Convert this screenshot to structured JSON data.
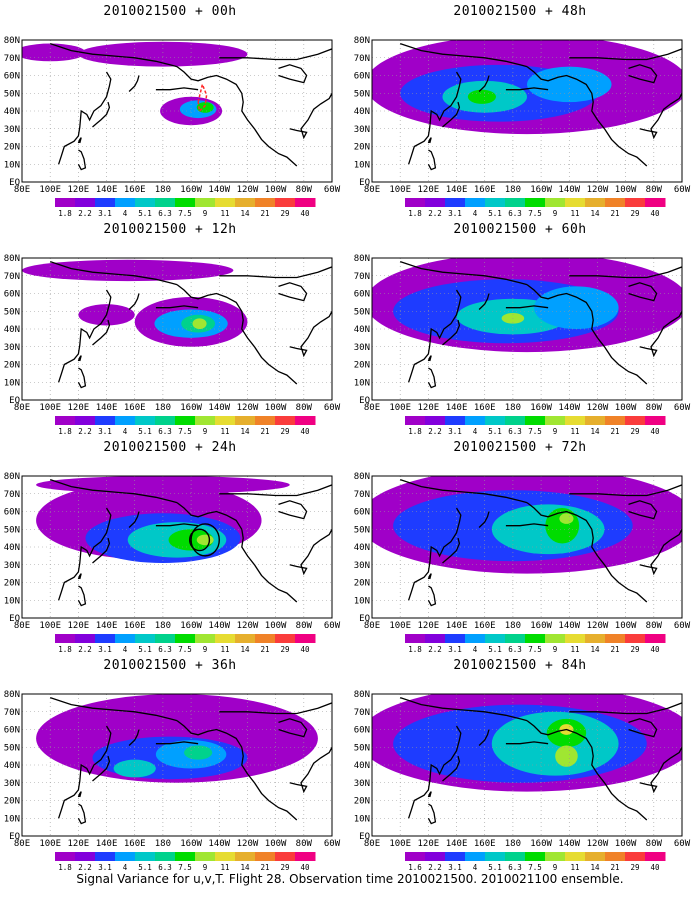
{
  "figure": {
    "caption": "Signal Variance for u,v,T. Flight 28. Observation time 2010021500. 2010021100 ensemble."
  },
  "chart_data": [
    {
      "type": "heatmap",
      "title": "2010021500 + 00h",
      "lead_hours": 0,
      "map": {
        "lon_range": [
          80,
          300
        ],
        "lat_range": [
          0,
          80
        ]
      },
      "x_tick_labels": [
        "80E",
        "100E",
        "120E",
        "140E",
        "160E",
        "180",
        "160W",
        "140W",
        "120W",
        "100W",
        "80W",
        "60W"
      ],
      "y_tick_labels": [
        "EQ",
        "10N",
        "20N",
        "30N",
        "40N",
        "50N",
        "60N",
        "70N",
        "80N"
      ],
      "color_scale": {
        "levels": [
          "1.8",
          "2.2",
          "3.1",
          "4",
          "5.1",
          "6.3",
          "7.5",
          "9",
          "11",
          "14",
          "21",
          "29",
          "40"
        ],
        "colors": [
          "#a000c8",
          "#8200dc",
          "#1e3cff",
          "#00a0ff",
          "#00c8c8",
          "#00d28c",
          "#00dc00",
          "#a0e632",
          "#e6dc32",
          "#e6af2d",
          "#f08228",
          "#fa3c3c",
          "#f00082"
        ]
      },
      "shaded_regions": [
        {
          "lon": 200,
          "lat": 40,
          "rx": 22,
          "ry": 8,
          "level": 0
        },
        {
          "lon": 205,
          "lat": 41,
          "rx": 13,
          "ry": 5,
          "level": 3
        },
        {
          "lon": 210,
          "lat": 42,
          "rx": 6,
          "ry": 3,
          "level": 6
        },
        {
          "lon": 180,
          "lat": 72,
          "rx": 60,
          "ry": 7,
          "level": 0
        },
        {
          "lon": 100,
          "lat": 73,
          "rx": 25,
          "ry": 5,
          "level": 0
        }
      ],
      "observation_track": true,
      "has_circles": false
    },
    {
      "type": "heatmap",
      "title": "2010021500 + 12h",
      "lead_hours": 12,
      "map": {
        "lon_range": [
          80,
          300
        ],
        "lat_range": [
          0,
          80
        ]
      },
      "x_tick_labels": [
        "80E",
        "100E",
        "120E",
        "140E",
        "160E",
        "180",
        "160W",
        "140W",
        "120W",
        "100W",
        "80W",
        "60W"
      ],
      "y_tick_labels": [
        "EQ",
        "10N",
        "20N",
        "30N",
        "40N",
        "50N",
        "60N",
        "70N",
        "80N"
      ],
      "color_scale": {
        "levels": [
          "1.8",
          "2.2",
          "3.1",
          "4",
          "5.1",
          "6.3",
          "7.5",
          "9",
          "11",
          "14",
          "21",
          "29",
          "40"
        ],
        "colors": [
          "#a000c8",
          "#8200dc",
          "#1e3cff",
          "#00a0ff",
          "#00c8c8",
          "#00d28c",
          "#00dc00",
          "#a0e632",
          "#e6dc32",
          "#e6af2d",
          "#f08228",
          "#fa3c3c",
          "#f00082"
        ]
      },
      "shaded_regions": [
        {
          "lon": 155,
          "lat": 73,
          "rx": 75,
          "ry": 6,
          "level": 0
        },
        {
          "lon": 200,
          "lat": 44,
          "rx": 40,
          "ry": 14,
          "level": 0
        },
        {
          "lon": 200,
          "lat": 43,
          "rx": 26,
          "ry": 8,
          "level": 3
        },
        {
          "lon": 205,
          "lat": 43,
          "rx": 12,
          "ry": 5,
          "level": 5
        },
        {
          "lon": 206,
          "lat": 43,
          "rx": 5,
          "ry": 3,
          "level": 7
        },
        {
          "lon": 140,
          "lat": 48,
          "rx": 20,
          "ry": 6,
          "level": 0
        }
      ],
      "observation_track": false,
      "has_circles": false
    },
    {
      "type": "heatmap",
      "title": "2010021500 + 24h",
      "lead_hours": 24,
      "map": {
        "lon_range": [
          80,
          300
        ],
        "lat_range": [
          0,
          80
        ]
      },
      "x_tick_labels": [
        "80E",
        "100E",
        "120E",
        "140E",
        "160E",
        "180",
        "160W",
        "140W",
        "120W",
        "100W",
        "80W",
        "60W"
      ],
      "y_tick_labels": [
        "EQ",
        "10N",
        "20N",
        "30N",
        "40N",
        "50N",
        "60N",
        "70N",
        "80N"
      ],
      "color_scale": {
        "levels": [
          "1.8",
          "2.2",
          "3.1",
          "4",
          "5.1",
          "6.3",
          "7.5",
          "9",
          "11",
          "14",
          "21",
          "29",
          "40"
        ],
        "colors": [
          "#a000c8",
          "#8200dc",
          "#1e3cff",
          "#00a0ff",
          "#00c8c8",
          "#00d28c",
          "#00dc00",
          "#a0e632",
          "#e6dc32",
          "#e6af2d",
          "#f08228",
          "#fa3c3c",
          "#f00082"
        ]
      },
      "shaded_regions": [
        {
          "lon": 170,
          "lat": 55,
          "rx": 80,
          "ry": 22,
          "level": 0
        },
        {
          "lon": 180,
          "lat": 45,
          "rx": 55,
          "ry": 14,
          "level": 2
        },
        {
          "lon": 190,
          "lat": 44,
          "rx": 35,
          "ry": 10,
          "level": 4
        },
        {
          "lon": 200,
          "lat": 44,
          "rx": 16,
          "ry": 6,
          "level": 6
        },
        {
          "lon": 210,
          "lat": 44,
          "rx": 6,
          "ry": 3,
          "level": 7
        },
        {
          "lon": 180,
          "lat": 75,
          "rx": 90,
          "ry": 5,
          "level": 0
        }
      ],
      "observation_track": false,
      "has_circles": true
    },
    {
      "type": "heatmap",
      "title": "2010021500 + 36h",
      "lead_hours": 36,
      "map": {
        "lon_range": [
          80,
          300
        ],
        "lat_range": [
          0,
          80
        ]
      },
      "x_tick_labels": [
        "80E",
        "100E",
        "120E",
        "140E",
        "160E",
        "180",
        "160W",
        "140W",
        "120W",
        "100W",
        "80W",
        "60W"
      ],
      "y_tick_labels": [
        "EQ",
        "10N",
        "20N",
        "30N",
        "40N",
        "50N",
        "60N",
        "70N",
        "80N"
      ],
      "color_scale": {
        "levels": [
          "1.8",
          "2.2",
          "3.1",
          "4",
          "5.1",
          "6.3",
          "7.5",
          "9",
          "11",
          "14",
          "21",
          "29",
          "40"
        ],
        "colors": [
          "#a000c8",
          "#8200dc",
          "#1e3cff",
          "#00a0ff",
          "#00c8c8",
          "#00d28c",
          "#00dc00",
          "#a0e632",
          "#e6dc32",
          "#e6af2d",
          "#f08228",
          "#fa3c3c",
          "#f00082"
        ]
      },
      "shaded_regions": [
        {
          "lon": 190,
          "lat": 55,
          "rx": 100,
          "ry": 25,
          "level": 0
        },
        {
          "lon": 185,
          "lat": 44,
          "rx": 55,
          "ry": 12,
          "level": 2
        },
        {
          "lon": 200,
          "lat": 46,
          "rx": 25,
          "ry": 8,
          "level": 3
        },
        {
          "lon": 205,
          "lat": 47,
          "rx": 10,
          "ry": 4,
          "level": 5
        },
        {
          "lon": 160,
          "lat": 38,
          "rx": 15,
          "ry": 5,
          "level": 4
        }
      ],
      "observation_track": false,
      "has_circles": false
    },
    {
      "type": "heatmap",
      "title": "2010021500 + 48h",
      "lead_hours": 48,
      "map": {
        "lon_range": [
          80,
          300
        ],
        "lat_range": [
          0,
          80
        ]
      },
      "x_tick_labels": [
        "80E",
        "100E",
        "120E",
        "140E",
        "160E",
        "180",
        "160W",
        "140W",
        "120W",
        "100W",
        "80W",
        "60W"
      ],
      "y_tick_labels": [
        "EQ",
        "10N",
        "20N",
        "30N",
        "40N",
        "50N",
        "60N",
        "70N",
        "80N"
      ],
      "color_scale": {
        "levels": [
          "1.8",
          "2.2",
          "3.1",
          "4",
          "5.1",
          "6.3",
          "7.5",
          "9",
          "11",
          "14",
          "21",
          "29",
          "40"
        ],
        "colors": [
          "#a000c8",
          "#8200dc",
          "#1e3cff",
          "#00a0ff",
          "#00c8c8",
          "#00d28c",
          "#00dc00",
          "#a0e632",
          "#e6dc32",
          "#e6af2d",
          "#f08228",
          "#fa3c3c",
          "#f00082"
        ]
      },
      "shaded_regions": [
        {
          "lon": 190,
          "lat": 55,
          "rx": 115,
          "ry": 28,
          "level": 0
        },
        {
          "lon": 170,
          "lat": 50,
          "rx": 70,
          "ry": 16,
          "level": 2
        },
        {
          "lon": 160,
          "lat": 48,
          "rx": 30,
          "ry": 9,
          "level": 4
        },
        {
          "lon": 158,
          "lat": 48,
          "rx": 10,
          "ry": 4,
          "level": 6
        },
        {
          "lon": 220,
          "lat": 55,
          "rx": 30,
          "ry": 10,
          "level": 3
        }
      ],
      "observation_track": false,
      "has_circles": false
    },
    {
      "type": "heatmap",
      "title": "2010021500 + 60h",
      "lead_hours": 60,
      "map": {
        "lon_range": [
          80,
          300
        ],
        "lat_range": [
          0,
          80
        ]
      },
      "x_tick_labels": [
        "80E",
        "100E",
        "120E",
        "140E",
        "160E",
        "180",
        "160W",
        "140W",
        "120W",
        "100W",
        "80W",
        "60W"
      ],
      "y_tick_labels": [
        "EQ",
        "10N",
        "20N",
        "30N",
        "40N",
        "50N",
        "60N",
        "70N",
        "80N"
      ],
      "color_scale": {
        "levels": [
          "1.8",
          "2.2",
          "3.1",
          "4",
          "5.1",
          "6.3",
          "7.5",
          "9",
          "11",
          "14",
          "21",
          "29",
          "40"
        ],
        "colors": [
          "#a000c8",
          "#8200dc",
          "#1e3cff",
          "#00a0ff",
          "#00c8c8",
          "#00d28c",
          "#00dc00",
          "#a0e632",
          "#e6dc32",
          "#e6af2d",
          "#f08228",
          "#fa3c3c",
          "#f00082"
        ]
      },
      "shaded_regions": [
        {
          "lon": 190,
          "lat": 55,
          "rx": 115,
          "ry": 28,
          "level": 0
        },
        {
          "lon": 175,
          "lat": 50,
          "rx": 80,
          "ry": 18,
          "level": 2
        },
        {
          "lon": 180,
          "lat": 47,
          "rx": 40,
          "ry": 10,
          "level": 4
        },
        {
          "lon": 180,
          "lat": 46,
          "rx": 8,
          "ry": 3,
          "level": 7
        },
        {
          "lon": 225,
          "lat": 52,
          "rx": 30,
          "ry": 12,
          "level": 3
        }
      ],
      "observation_track": false,
      "has_circles": false
    },
    {
      "type": "heatmap",
      "title": "2010021500 + 72h",
      "lead_hours": 72,
      "map": {
        "lon_range": [
          80,
          300
        ],
        "lat_range": [
          0,
          80
        ]
      },
      "x_tick_labels": [
        "80E",
        "100E",
        "120E",
        "140E",
        "160E",
        "180",
        "160W",
        "140W",
        "120W",
        "100W",
        "80W",
        "60W"
      ],
      "y_tick_labels": [
        "EQ",
        "10N",
        "20N",
        "30N",
        "40N",
        "50N",
        "60N",
        "70N",
        "80N"
      ],
      "color_scale": {
        "levels": [
          "1.8",
          "2.2",
          "3.1",
          "4",
          "5.1",
          "6.3",
          "7.5",
          "9",
          "11",
          "14",
          "21",
          "29",
          "40"
        ],
        "colors": [
          "#a000c8",
          "#8200dc",
          "#1e3cff",
          "#00a0ff",
          "#00c8c8",
          "#00d28c",
          "#00dc00",
          "#a0e632",
          "#e6dc32",
          "#e6af2d",
          "#f08228",
          "#fa3c3c",
          "#f00082"
        ]
      },
      "shaded_regions": [
        {
          "lon": 190,
          "lat": 55,
          "rx": 120,
          "ry": 30,
          "level": 0
        },
        {
          "lon": 180,
          "lat": 52,
          "rx": 85,
          "ry": 20,
          "level": 2
        },
        {
          "lon": 205,
          "lat": 50,
          "rx": 40,
          "ry": 14,
          "level": 4
        },
        {
          "lon": 215,
          "lat": 52,
          "rx": 12,
          "ry": 10,
          "level": 6
        },
        {
          "lon": 218,
          "lat": 56,
          "rx": 5,
          "ry": 3,
          "level": 7
        }
      ],
      "observation_track": false,
      "has_circles": false
    },
    {
      "type": "heatmap",
      "title": "2010021500 + 84h",
      "lead_hours": 84,
      "map": {
        "lon_range": [
          80,
          300
        ],
        "lat_range": [
          0,
          80
        ]
      },
      "x_tick_labels": [
        "80E",
        "100E",
        "120E",
        "140E",
        "160E",
        "180",
        "160W",
        "140W",
        "120W",
        "100W",
        "80W",
        "60W"
      ],
      "y_tick_labels": [
        "EQ",
        "10N",
        "20N",
        "30N",
        "40N",
        "50N",
        "60N",
        "70N",
        "80N"
      ],
      "color_scale": {
        "levels": [
          "1.6",
          "2.2",
          "3.1",
          "4",
          "5.1",
          "6.3",
          "7.5",
          "9",
          "11",
          "14",
          "21",
          "29",
          "40"
        ],
        "colors": [
          "#a000c8",
          "#8200dc",
          "#1e3cff",
          "#00a0ff",
          "#00c8c8",
          "#00d28c",
          "#00dc00",
          "#a0e632",
          "#e6dc32",
          "#e6af2d",
          "#f08228",
          "#fa3c3c",
          "#f00082"
        ]
      },
      "shaded_regions": [
        {
          "lon": 190,
          "lat": 55,
          "rx": 120,
          "ry": 30,
          "level": 0
        },
        {
          "lon": 185,
          "lat": 52,
          "rx": 90,
          "ry": 22,
          "level": 2
        },
        {
          "lon": 210,
          "lat": 52,
          "rx": 45,
          "ry": 18,
          "level": 4
        },
        {
          "lon": 218,
          "lat": 58,
          "rx": 14,
          "ry": 8,
          "level": 6
        },
        {
          "lon": 218,
          "lat": 45,
          "rx": 8,
          "ry": 6,
          "level": 7
        },
        {
          "lon": 218,
          "lat": 60,
          "rx": 5,
          "ry": 3,
          "level": 8
        }
      ],
      "observation_track": false,
      "has_circles": false
    }
  ]
}
